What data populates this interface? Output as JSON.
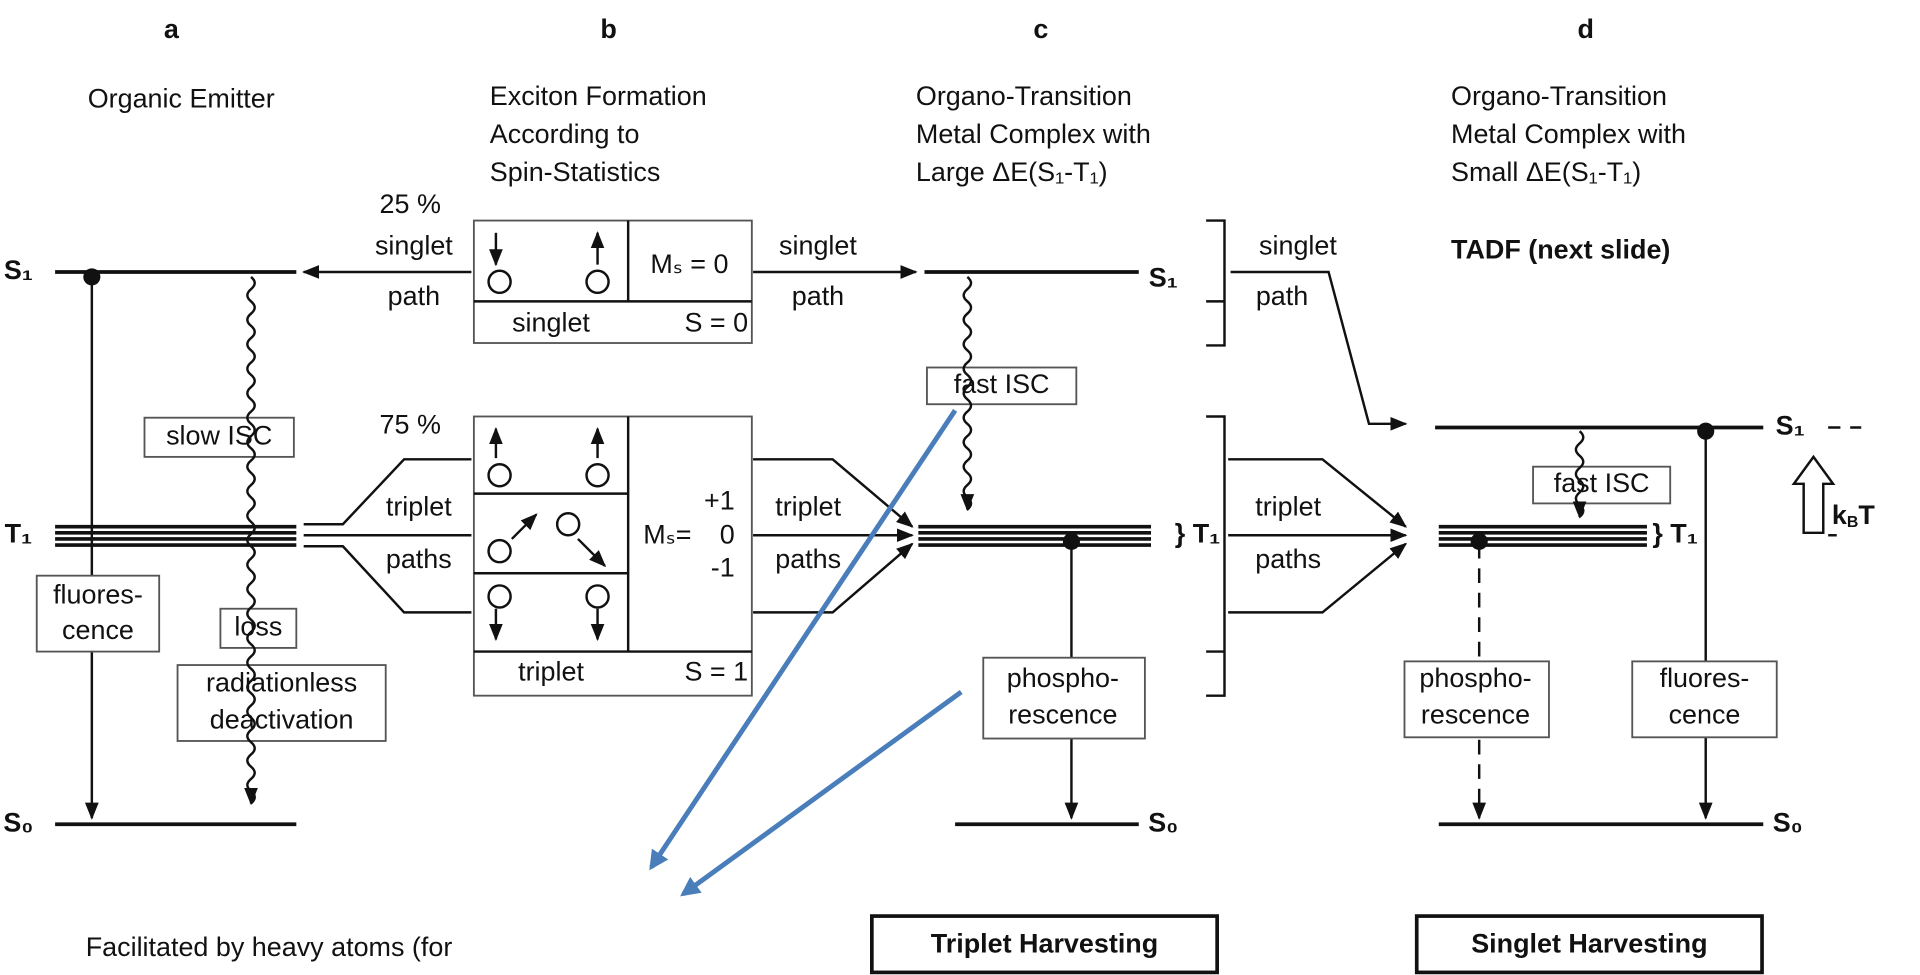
{
  "panels": [
    {
      "letter": "a",
      "title": [
        "Organic Emitter"
      ],
      "texts": [
        "S₁",
        "T₁",
        "S₀",
        "slow ISC",
        "fluores-",
        "cence",
        "loss",
        "radiationless",
        "deactivation"
      ]
    },
    {
      "letter": "b",
      "title": [
        "Exciton Formation",
        "According to",
        "Spin-Statistics"
      ],
      "texts": [
        "25 %",
        "singlet",
        "path",
        "Mₛ = 0",
        "singlet",
        "S = 0",
        "75 %",
        "triplet",
        "paths",
        "+1",
        "0",
        "-1",
        "Mₛ=",
        "triplet",
        "S = 1",
        "singlet",
        "path",
        "triplet",
        "paths"
      ]
    },
    {
      "letter": "c",
      "title": [
        "Organo-Transition",
        "Metal Complex with",
        "Large ΔE(S₁-T₁)"
      ],
      "texts": [
        "S₁",
        "fast ISC",
        "} T₁",
        "phospho-",
        "rescence",
        "S₀",
        "Triplet Harvesting"
      ]
    },
    {
      "letter": "d",
      "title": [
        "Organo-Transition",
        "Metal Complex with",
        "Small ΔE(S₁-T₁)"
      ],
      "texts": [
        "singlet",
        "path",
        "triplet",
        "paths",
        "S₁",
        "fast ISC",
        "} T₁",
        "phospho-",
        "rescence",
        "fluores-",
        "cence",
        "S₀",
        "Singlet Harvesting"
      ],
      "kbt": [
        "k",
        "B",
        "T"
      ]
    }
  ],
  "tadf": "TADF (next slide)",
  "note": "Facilitated by heavy atoms (for"
}
